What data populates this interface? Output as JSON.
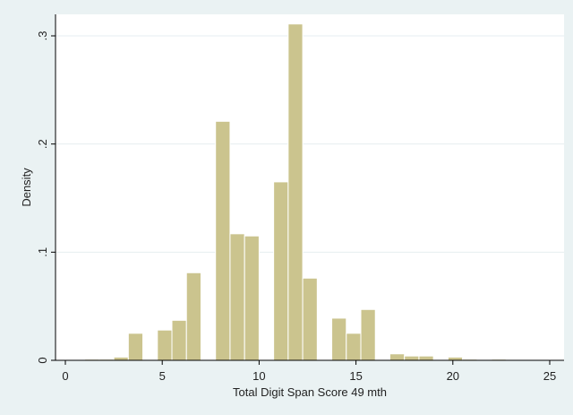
{
  "chart_data": {
    "type": "bar",
    "subtype": "histogram",
    "xlabel": "Total Digit Span Score 49 mth",
    "ylabel": "Density",
    "xlim": [
      0,
      25
    ],
    "ylim": [
      0,
      0.3
    ],
    "xticks": [
      0,
      5,
      10,
      15,
      20,
      25
    ],
    "xtick_labels": [
      "0",
      "5",
      "10",
      "15",
      "20",
      "25"
    ],
    "yticks": [
      0,
      0.1,
      0.2,
      0.3
    ],
    "ytick_labels": [
      "0",
      ".1",
      ".2",
      ".3"
    ],
    "grid": "horizontal",
    "bar_color": "#cbc48e",
    "bin_width": 0.75,
    "bins": [
      {
        "x0": 1.0,
        "x1": 1.75,
        "value": 0.001
      },
      {
        "x0": 1.75,
        "x1": 2.5,
        "value": 0.001
      },
      {
        "x0": 2.5,
        "x1": 3.25,
        "value": 0.003
      },
      {
        "x0": 3.25,
        "x1": 4.0,
        "value": 0.025
      },
      {
        "x0": 4.0,
        "x1": 4.75,
        "value": 0.0
      },
      {
        "x0": 4.75,
        "x1": 5.5,
        "value": 0.028
      },
      {
        "x0": 5.5,
        "x1": 6.25,
        "value": 0.037
      },
      {
        "x0": 6.25,
        "x1": 7.0,
        "value": 0.081
      },
      {
        "x0": 7.0,
        "x1": 7.75,
        "value": 0.0
      },
      {
        "x0": 7.75,
        "x1": 8.5,
        "value": 0.221
      },
      {
        "x0": 8.5,
        "x1": 9.25,
        "value": 0.117
      },
      {
        "x0": 9.25,
        "x1": 10.0,
        "value": 0.115
      },
      {
        "x0": 10.0,
        "x1": 10.75,
        "value": 0.0
      },
      {
        "x0": 10.75,
        "x1": 11.5,
        "value": 0.165
      },
      {
        "x0": 11.5,
        "x1": 12.25,
        "value": 0.311
      },
      {
        "x0": 12.25,
        "x1": 13.0,
        "value": 0.076
      },
      {
        "x0": 13.0,
        "x1": 13.75,
        "value": 0.0
      },
      {
        "x0": 13.75,
        "x1": 14.5,
        "value": 0.039
      },
      {
        "x0": 14.5,
        "x1": 15.25,
        "value": 0.025
      },
      {
        "x0": 15.25,
        "x1": 16.0,
        "value": 0.047
      },
      {
        "x0": 16.0,
        "x1": 16.75,
        "value": 0.0
      },
      {
        "x0": 16.75,
        "x1": 17.5,
        "value": 0.006
      },
      {
        "x0": 17.5,
        "x1": 18.25,
        "value": 0.004
      },
      {
        "x0": 18.25,
        "x1": 19.0,
        "value": 0.004
      },
      {
        "x0": 19.0,
        "x1": 19.75,
        "value": 0.0
      },
      {
        "x0": 19.75,
        "x1": 20.5,
        "value": 0.003
      },
      {
        "x0": 20.5,
        "x1": 21.25,
        "value": 0.001
      },
      {
        "x0": 21.25,
        "x1": 22.0,
        "value": 0.0
      },
      {
        "x0": 22.0,
        "x1": 22.75,
        "value": 0.001
      }
    ]
  }
}
